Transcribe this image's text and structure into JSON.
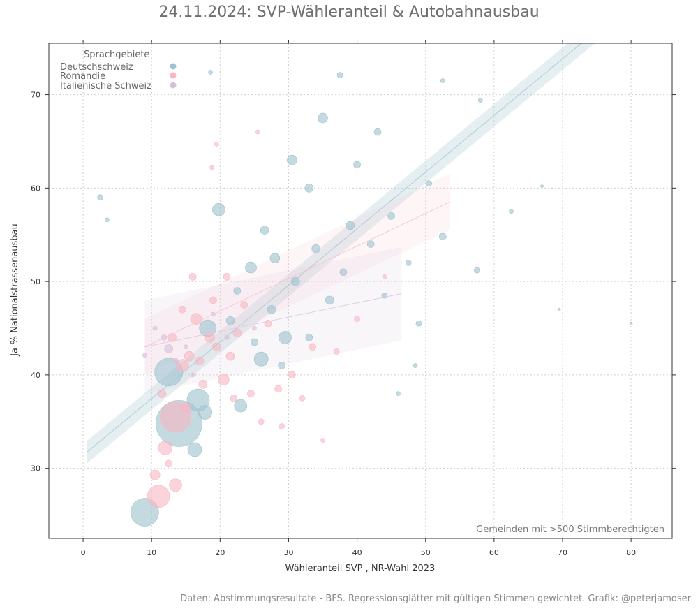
{
  "chart_data": {
    "type": "scatter",
    "title": "24.11.2024: SVP-Wähleranteil & Autobahnausbau",
    "xlabel": "Wähleranteil SVP , NR-Wahl 2023",
    "ylabel": "Ja-% Nationalstrassenausbau",
    "xlim": [
      -5,
      86
    ],
    "ylim": [
      22.5,
      75.5
    ],
    "x_ticks": [
      0,
      10,
      20,
      30,
      40,
      50,
      60,
      70,
      80
    ],
    "y_ticks": [
      30,
      40,
      50,
      60,
      70
    ],
    "grid": true,
    "legend": {
      "title": "Sprachgebiete",
      "placement": "top-left",
      "entries": [
        {
          "name": "Deutschschweiz",
          "color": "#9cc2cd"
        },
        {
          "name": "Romandie",
          "color": "#f8b6c1"
        },
        {
          "name": "Italienische Schweiz",
          "color": "#d8bfd8"
        }
      ]
    },
    "annotation": "Gemeinden mit >500 Stimmberechtigten",
    "series": [
      {
        "name": "Deutschschweiz",
        "color": "#9cc2cd",
        "points": [
          {
            "x": 9.0,
            "y": 25.3,
            "size": 20
          },
          {
            "x": 14.0,
            "y": 34.8,
            "size": 33
          },
          {
            "x": 12.5,
            "y": 40.3,
            "size": 20
          },
          {
            "x": 16.8,
            "y": 37.3,
            "size": 16
          },
          {
            "x": 17.8,
            "y": 36.0,
            "size": 10
          },
          {
            "x": 16.3,
            "y": 32.0,
            "size": 10
          },
          {
            "x": 18.2,
            "y": 45.0,
            "size": 12
          },
          {
            "x": 19.8,
            "y": 57.7,
            "size": 9
          },
          {
            "x": 23.0,
            "y": 36.7,
            "size": 9
          },
          {
            "x": 26.0,
            "y": 41.7,
            "size": 10
          },
          {
            "x": 29.5,
            "y": 44.0,
            "size": 9
          },
          {
            "x": 30.5,
            "y": 63.0,
            "size": 7
          },
          {
            "x": 35.0,
            "y": 67.5,
            "size": 7
          },
          {
            "x": 37.5,
            "y": 72.1,
            "size": 4
          },
          {
            "x": 2.5,
            "y": 59.0,
            "size": 4
          },
          {
            "x": 3.5,
            "y": 56.6,
            "size": 3
          },
          {
            "x": 18.6,
            "y": 72.4,
            "size": 3
          },
          {
            "x": 33.0,
            "y": 60.0,
            "size": 6
          },
          {
            "x": 39.0,
            "y": 56.0,
            "size": 6
          },
          {
            "x": 28.0,
            "y": 52.5,
            "size": 7
          },
          {
            "x": 31.0,
            "y": 50.0,
            "size": 6
          },
          {
            "x": 36.0,
            "y": 48.0,
            "size": 6
          },
          {
            "x": 42.0,
            "y": 54.0,
            "size": 5
          },
          {
            "x": 24.5,
            "y": 51.5,
            "size": 8
          },
          {
            "x": 21.5,
            "y": 45.8,
            "size": 6
          },
          {
            "x": 26.5,
            "y": 55.5,
            "size": 6
          },
          {
            "x": 34.0,
            "y": 53.5,
            "size": 6
          },
          {
            "x": 45.0,
            "y": 57.0,
            "size": 5
          },
          {
            "x": 52.5,
            "y": 54.8,
            "size": 5
          },
          {
            "x": 57.5,
            "y": 51.2,
            "size": 4
          },
          {
            "x": 80.0,
            "y": 45.5,
            "size": 2
          },
          {
            "x": 69.5,
            "y": 47.0,
            "size": 2
          },
          {
            "x": 67.0,
            "y": 60.2,
            "size": 2
          },
          {
            "x": 62.5,
            "y": 57.5,
            "size": 3
          },
          {
            "x": 49.0,
            "y": 45.5,
            "size": 4
          },
          {
            "x": 46.0,
            "y": 38.0,
            "size": 3
          },
          {
            "x": 48.5,
            "y": 41.0,
            "size": 3
          },
          {
            "x": 58.0,
            "y": 69.4,
            "size": 3
          },
          {
            "x": 52.5,
            "y": 71.5,
            "size": 3
          },
          {
            "x": 43.0,
            "y": 66.0,
            "size": 5
          },
          {
            "x": 40.0,
            "y": 62.5,
            "size": 5
          },
          {
            "x": 29.0,
            "y": 41.0,
            "size": 5
          },
          {
            "x": 33.0,
            "y": 44.0,
            "size": 5
          },
          {
            "x": 27.5,
            "y": 47.0,
            "size": 6
          },
          {
            "x": 22.5,
            "y": 49.0,
            "size": 5
          },
          {
            "x": 25.0,
            "y": 43.5,
            "size": 5
          },
          {
            "x": 38.0,
            "y": 51.0,
            "size": 5
          },
          {
            "x": 44.0,
            "y": 48.5,
            "size": 4
          },
          {
            "x": 47.5,
            "y": 52.0,
            "size": 4
          },
          {
            "x": 50.5,
            "y": 60.5,
            "size": 4
          }
        ]
      },
      {
        "name": "Romandie",
        "color": "#f8b6c1",
        "points": [
          {
            "x": 11.0,
            "y": 27.0,
            "size": 16
          },
          {
            "x": 13.5,
            "y": 35.5,
            "size": 22
          },
          {
            "x": 12.0,
            "y": 32.2,
            "size": 10
          },
          {
            "x": 13.5,
            "y": 28.2,
            "size": 9
          },
          {
            "x": 10.5,
            "y": 29.3,
            "size": 7
          },
          {
            "x": 12.5,
            "y": 30.5,
            "size": 5
          },
          {
            "x": 14.5,
            "y": 41.0,
            "size": 9
          },
          {
            "x": 16.5,
            "y": 46.0,
            "size": 8
          },
          {
            "x": 18.5,
            "y": 44.0,
            "size": 7
          },
          {
            "x": 20.5,
            "y": 39.5,
            "size": 8
          },
          {
            "x": 15.5,
            "y": 42.0,
            "size": 7
          },
          {
            "x": 21.5,
            "y": 42.0,
            "size": 6
          },
          {
            "x": 17.5,
            "y": 39.0,
            "size": 6
          },
          {
            "x": 22.5,
            "y": 44.5,
            "size": 6
          },
          {
            "x": 24.5,
            "y": 38.0,
            "size": 5
          },
          {
            "x": 19.0,
            "y": 48.0,
            "size": 5
          },
          {
            "x": 16.0,
            "y": 50.5,
            "size": 5
          },
          {
            "x": 14.5,
            "y": 47.0,
            "size": 5
          },
          {
            "x": 25.5,
            "y": 66.0,
            "size": 3
          },
          {
            "x": 19.5,
            "y": 64.7,
            "size": 3
          },
          {
            "x": 18.8,
            "y": 62.2,
            "size": 3
          },
          {
            "x": 28.5,
            "y": 38.5,
            "size": 5
          },
          {
            "x": 30.5,
            "y": 40.0,
            "size": 5
          },
          {
            "x": 33.5,
            "y": 43.0,
            "size": 5
          },
          {
            "x": 27.0,
            "y": 45.5,
            "size": 5
          },
          {
            "x": 23.5,
            "y": 47.5,
            "size": 5
          },
          {
            "x": 21.0,
            "y": 50.5,
            "size": 5
          },
          {
            "x": 26.0,
            "y": 35.0,
            "size": 4
          },
          {
            "x": 37.0,
            "y": 42.5,
            "size": 4
          },
          {
            "x": 40.0,
            "y": 46.0,
            "size": 4
          },
          {
            "x": 44.0,
            "y": 50.5,
            "size": 3
          },
          {
            "x": 13.0,
            "y": 44.0,
            "size": 6
          },
          {
            "x": 11.5,
            "y": 38.0,
            "size": 6
          },
          {
            "x": 15.0,
            "y": 36.5,
            "size": 7
          },
          {
            "x": 17.0,
            "y": 41.5,
            "size": 6
          },
          {
            "x": 19.5,
            "y": 43.0,
            "size": 6
          },
          {
            "x": 22.0,
            "y": 37.5,
            "size": 5
          },
          {
            "x": 29.0,
            "y": 34.5,
            "size": 4
          },
          {
            "x": 32.0,
            "y": 37.5,
            "size": 4
          },
          {
            "x": 35.0,
            "y": 33.0,
            "size": 3
          }
        ]
      },
      {
        "name": "Italienische Schweiz",
        "color": "#d8bfd8",
        "points": [
          {
            "x": 12.5,
            "y": 42.8,
            "size": 6
          },
          {
            "x": 11.8,
            "y": 44.0,
            "size": 4
          },
          {
            "x": 10.5,
            "y": 45.0,
            "size": 3
          },
          {
            "x": 9.0,
            "y": 42.1,
            "size": 3
          },
          {
            "x": 13.5,
            "y": 41.5,
            "size": 4
          },
          {
            "x": 15.0,
            "y": 43.0,
            "size": 3
          },
          {
            "x": 16.0,
            "y": 40.0,
            "size": 3
          },
          {
            "x": 19.0,
            "y": 46.5,
            "size": 3
          },
          {
            "x": 21.0,
            "y": 44.0,
            "size": 3
          },
          {
            "x": 25.0,
            "y": 45.0,
            "size": 3
          }
        ]
      }
    ],
    "regression_lines": [
      {
        "name": "Deutschschweiz",
        "color": "#aecbd4",
        "x": [
          0.5,
          78.5
        ],
        "y": [
          31.7,
          79.0
        ],
        "band_halfwidth": 1.2
      },
      {
        "name": "Romandie",
        "color": "#f8c8d0",
        "x": [
          9.0,
          53.5
        ],
        "y": [
          43.0,
          58.5
        ],
        "band_halfwidth": 3.0
      },
      {
        "name": "Italienische Schweiz",
        "color": "#e0cde0",
        "x": [
          9.0,
          46.5
        ],
        "y": [
          43.0,
          48.7
        ],
        "band_halfwidth": 5.0
      }
    ]
  },
  "caption": "Daten: Abstimmungsresultate - BFS. Regressionsglätter mit gültigen Stimmen gewichtet. Grafik: @peterjamoser"
}
